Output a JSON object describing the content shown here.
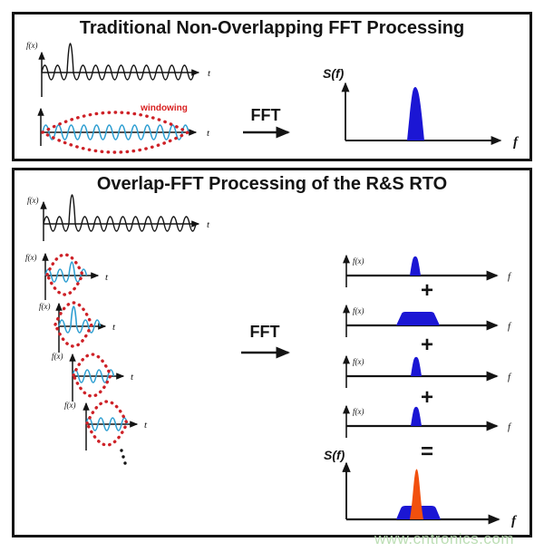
{
  "panel1": {
    "title": "Traditional Non-Overlapping FFT Processing",
    "signal": {
      "ylabel": "f(x)",
      "xlabel": "t"
    },
    "windowed": {
      "annotation": "windowing",
      "xlabel": "t"
    },
    "fft_label": "FFT",
    "spectrum": {
      "ylabel": "S(f)",
      "xlabel": "f",
      "shape": "narrow-peak"
    }
  },
  "panel2": {
    "title": "Overlap-FFT Processing of the R&S RTO",
    "signal": {
      "ylabel": "f(x)",
      "xlabel": "t"
    },
    "segments": [
      {
        "ylabel": "f(x)",
        "xlabel": "t",
        "content": "sine-with-partial-spike"
      },
      {
        "ylabel": "f(x)",
        "xlabel": "t",
        "content": "sine-with-center-spike"
      },
      {
        "ylabel": "f(x)",
        "xlabel": "t",
        "content": "sine"
      },
      {
        "ylabel": "f(x)",
        "xlabel": "t",
        "content": "sine"
      }
    ],
    "ellipsis": "more-segments",
    "fft_label": "FFT",
    "plus": "+",
    "equals": "=",
    "spectra": [
      {
        "ylabel": "f(x)",
        "xlabel": "f",
        "shape": "narrow-peak"
      },
      {
        "ylabel": "f(x)",
        "xlabel": "f",
        "shape": "wide-flat-band"
      },
      {
        "ylabel": "f(x)",
        "xlabel": "f",
        "shape": "narrow-peak"
      },
      {
        "ylabel": "f(x)",
        "xlabel": "f",
        "shape": "narrow-peak"
      }
    ],
    "result": {
      "ylabel": "S(f)",
      "xlabel": "f",
      "shape": "orange-peak-on-blue-band"
    }
  },
  "watermark": "www.cntronics.com",
  "colors": {
    "ink": "#141414",
    "spectrum_blue": "#1b16d4",
    "result_orange": "#f2500e",
    "wave_cyan": "#2f9fd2",
    "window_red": "#ce2127",
    "watermark_green": "#b9ddb1"
  }
}
